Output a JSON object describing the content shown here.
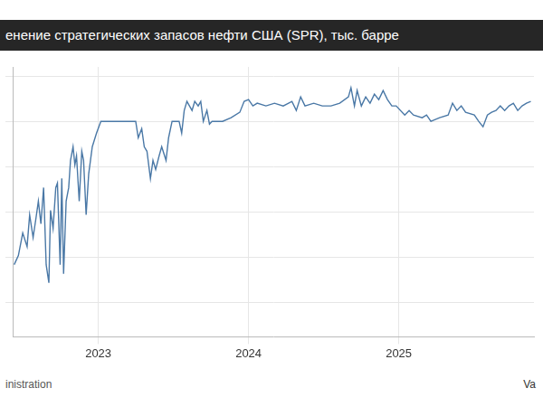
{
  "chart_data": {
    "type": "line",
    "title": "енение стратегических запасов нефти США (SPR), тыс. барре",
    "source": "inistration",
    "credit": "Va",
    "x": [
      2022.44,
      2022.468,
      2022.497,
      2022.526,
      2022.543,
      2022.566,
      2022.584,
      2022.601,
      2022.618,
      2022.636,
      2022.653,
      2022.671,
      2022.682,
      2022.699,
      2022.717,
      2022.728,
      2022.746,
      2022.757,
      2022.769,
      2022.786,
      2022.803,
      2022.815,
      2022.832,
      2022.844,
      2022.855,
      2022.873,
      2022.89,
      2022.902,
      2022.919,
      2022.936,
      2022.96,
      2022.988,
      2023.017,
      2023.191,
      2023.249,
      2023.266,
      2023.289,
      2023.306,
      2023.324,
      2023.347,
      2023.364,
      2023.382,
      2023.405,
      2023.422,
      2023.451,
      2023.468,
      2023.491,
      2023.538,
      2023.555,
      2023.572,
      2023.59,
      2023.607,
      2023.624,
      2023.642,
      2023.665,
      2023.682,
      2023.699,
      2023.723,
      2023.74,
      2023.757,
      2023.827,
      2023.884,
      2023.942,
      2023.971,
      2024.0,
      2024.029,
      2024.058,
      2024.116,
      2024.173,
      2024.231,
      2024.289,
      2024.318,
      2024.347,
      2024.376,
      2024.434,
      2024.491,
      2024.549,
      2024.607,
      2024.665,
      2024.682,
      2024.705,
      2024.723,
      2024.751,
      2024.78,
      2024.809,
      2024.838,
      2024.867,
      2024.896,
      2024.925,
      2024.954,
      2024.983,
      2025.04,
      2025.069,
      2025.098,
      2025.156,
      2025.185,
      2025.214,
      2025.272,
      2025.329,
      2025.358,
      2025.387,
      2025.416,
      2025.445,
      2025.503,
      2025.532,
      2025.561,
      2025.59,
      2025.618,
      2025.647,
      2025.676,
      2025.705,
      2025.734,
      2025.763,
      2025.792,
      2025.821,
      2025.85,
      2025.879
    ],
    "values": [
      -6320,
      -5920,
      -4920,
      -5520,
      -4120,
      -5120,
      -4320,
      -3520,
      -4520,
      -2920,
      -6320,
      -7120,
      -3920,
      -4720,
      -2920,
      -2720,
      -6320,
      -2520,
      -6720,
      -3520,
      -2920,
      -1720,
      -1120,
      -1920,
      -1520,
      -3520,
      -1320,
      -1720,
      -4120,
      -2320,
      -1120,
      -520,
      0,
      0,
      0,
      -720,
      -320,
      -1120,
      -1320,
      -2520,
      -1720,
      -2120,
      -1520,
      -1120,
      -1720,
      -720,
      0,
      0,
      -520,
      480,
      880,
      680,
      480,
      880,
      680,
      880,
      0,
      480,
      -120,
      0,
      0,
      160,
      400,
      880,
      960,
      680,
      800,
      680,
      800,
      680,
      880,
      480,
      1080,
      680,
      800,
      680,
      680,
      800,
      1080,
      1480,
      680,
      1360,
      680,
      1080,
      800,
      1200,
      960,
      1360,
      960,
      680,
      680,
      280,
      480,
      280,
      160,
      280,
      0,
      160,
      280,
      800,
      480,
      680,
      400,
      280,
      0,
      -240,
      280,
      400,
      480,
      680,
      480,
      680,
      800,
      480,
      680,
      800,
      880
    ],
    "color": "#4a78a6",
    "xlim": [
      2022.43,
      2025.9
    ],
    "xticks": [
      2023,
      2024,
      2025
    ],
    "ylim": [
      -9500,
      2400
    ],
    "yticks": [
      -8000,
      -6000,
      -4000,
      -2000,
      0,
      2000
    ],
    "grid": true,
    "tick_labels": "x"
  }
}
